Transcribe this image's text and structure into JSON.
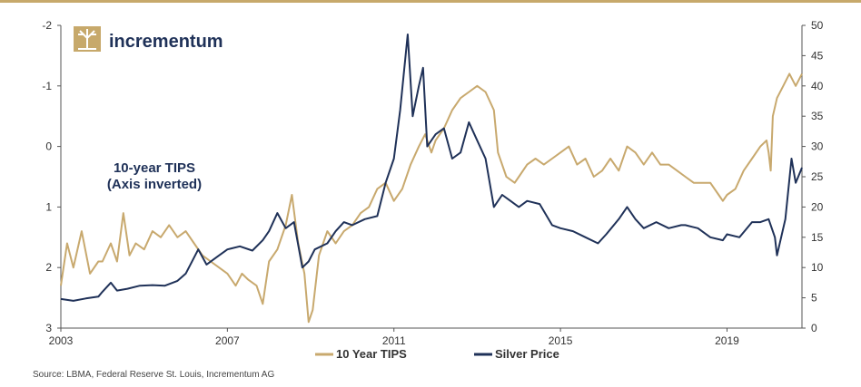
{
  "logo": {
    "text": "incrementum",
    "icon": "tree-icon"
  },
  "source": "Source: LBMA, Federal Reserve St. Louis, Incrementum AG",
  "annotation": {
    "line1": "10-year TIPS",
    "line2": "(Axis inverted)"
  },
  "colors": {
    "tips": "#c8a96e",
    "silver": "#1f3158",
    "accent": "#c7a96b"
  },
  "chart_data": {
    "type": "line",
    "x_ticks": [
      "2003",
      "2007",
      "2011",
      "2015",
      "2019"
    ],
    "x_range": [
      2003,
      2020.8
    ],
    "left_axis": {
      "series": "10 Year TIPS",
      "range": [
        -2,
        3
      ],
      "inverted": true,
      "ticks": [
        "-2",
        "-1",
        "0",
        "1",
        "2",
        "3"
      ]
    },
    "right_axis": {
      "series": "Silver Price",
      "range": [
        0,
        50
      ],
      "ticks": [
        "0",
        "5",
        "10",
        "15",
        "20",
        "25",
        "30",
        "35",
        "40",
        "45",
        "50"
      ]
    },
    "grid": false,
    "legend_position": "bottom",
    "series": [
      {
        "name": "10 Year TIPS",
        "axis": "left",
        "points": [
          [
            2003.0,
            2.3
          ],
          [
            2003.15,
            1.6
          ],
          [
            2003.3,
            2.0
          ],
          [
            2003.5,
            1.4
          ],
          [
            2003.7,
            2.1
          ],
          [
            2003.9,
            1.9
          ],
          [
            2004.0,
            1.9
          ],
          [
            2004.2,
            1.6
          ],
          [
            2004.35,
            1.9
          ],
          [
            2004.5,
            1.1
          ],
          [
            2004.65,
            1.8
          ],
          [
            2004.8,
            1.6
          ],
          [
            2005.0,
            1.7
          ],
          [
            2005.2,
            1.4
          ],
          [
            2005.4,
            1.5
          ],
          [
            2005.6,
            1.3
          ],
          [
            2005.8,
            1.5
          ],
          [
            2006.0,
            1.4
          ],
          [
            2006.2,
            1.6
          ],
          [
            2006.4,
            1.8
          ],
          [
            2006.6,
            1.9
          ],
          [
            2006.8,
            2.0
          ],
          [
            2007.0,
            2.1
          ],
          [
            2007.2,
            2.3
          ],
          [
            2007.35,
            2.1
          ],
          [
            2007.5,
            2.2
          ],
          [
            2007.7,
            2.3
          ],
          [
            2007.85,
            2.6
          ],
          [
            2008.0,
            1.9
          ],
          [
            2008.2,
            1.7
          ],
          [
            2008.4,
            1.3
          ],
          [
            2008.55,
            0.8
          ],
          [
            2008.7,
            1.6
          ],
          [
            2008.85,
            2.1
          ],
          [
            2008.95,
            2.9
          ],
          [
            2009.05,
            2.7
          ],
          [
            2009.2,
            1.8
          ],
          [
            2009.4,
            1.4
          ],
          [
            2009.6,
            1.6
          ],
          [
            2009.8,
            1.4
          ],
          [
            2010.0,
            1.3
          ],
          [
            2010.2,
            1.1
          ],
          [
            2010.4,
            1.0
          ],
          [
            2010.6,
            0.7
          ],
          [
            2010.8,
            0.6
          ],
          [
            2011.0,
            0.9
          ],
          [
            2011.2,
            0.7
          ],
          [
            2011.4,
            0.3
          ],
          [
            2011.6,
            0.0
          ],
          [
            2011.75,
            -0.2
          ],
          [
            2011.9,
            0.1
          ],
          [
            2012.0,
            -0.1
          ],
          [
            2012.2,
            -0.3
          ],
          [
            2012.4,
            -0.6
          ],
          [
            2012.6,
            -0.8
          ],
          [
            2012.8,
            -0.9
          ],
          [
            2013.0,
            -1.0
          ],
          [
            2013.2,
            -0.9
          ],
          [
            2013.4,
            -0.6
          ],
          [
            2013.5,
            0.1
          ],
          [
            2013.7,
            0.5
          ],
          [
            2013.9,
            0.6
          ],
          [
            2014.0,
            0.5
          ],
          [
            2014.2,
            0.3
          ],
          [
            2014.4,
            0.2
          ],
          [
            2014.6,
            0.3
          ],
          [
            2014.8,
            0.2
          ],
          [
            2015.0,
            0.1
          ],
          [
            2015.2,
            0.0
          ],
          [
            2015.4,
            0.3
          ],
          [
            2015.6,
            0.2
          ],
          [
            2015.8,
            0.5
          ],
          [
            2016.0,
            0.4
          ],
          [
            2016.2,
            0.2
          ],
          [
            2016.4,
            0.4
          ],
          [
            2016.6,
            0.0
          ],
          [
            2016.8,
            0.1
          ],
          [
            2017.0,
            0.3
          ],
          [
            2017.2,
            0.1
          ],
          [
            2017.4,
            0.3
          ],
          [
            2017.6,
            0.3
          ],
          [
            2017.8,
            0.4
          ],
          [
            2018.0,
            0.5
          ],
          [
            2018.2,
            0.6
          ],
          [
            2018.4,
            0.6
          ],
          [
            2018.6,
            0.6
          ],
          [
            2018.8,
            0.8
          ],
          [
            2018.9,
            0.9
          ],
          [
            2019.0,
            0.8
          ],
          [
            2019.2,
            0.7
          ],
          [
            2019.4,
            0.4
          ],
          [
            2019.6,
            0.2
          ],
          [
            2019.8,
            0.0
          ],
          [
            2019.95,
            -0.1
          ],
          [
            2020.0,
            0.1
          ],
          [
            2020.05,
            0.4
          ],
          [
            2020.1,
            -0.5
          ],
          [
            2020.2,
            -0.8
          ],
          [
            2020.35,
            -1.0
          ],
          [
            2020.5,
            -1.2
          ],
          [
            2020.65,
            -1.0
          ],
          [
            2020.8,
            -1.2
          ]
        ]
      },
      {
        "name": "Silver Price",
        "axis": "right",
        "points": [
          [
            2003.0,
            4.8
          ],
          [
            2003.3,
            4.5
          ],
          [
            2003.6,
            4.9
          ],
          [
            2003.9,
            5.2
          ],
          [
            2004.0,
            6.0
          ],
          [
            2004.2,
            7.5
          ],
          [
            2004.35,
            6.2
          ],
          [
            2004.6,
            6.5
          ],
          [
            2004.9,
            7.0
          ],
          [
            2005.2,
            7.1
          ],
          [
            2005.5,
            7.0
          ],
          [
            2005.8,
            7.8
          ],
          [
            2006.0,
            9.0
          ],
          [
            2006.3,
            13.0
          ],
          [
            2006.5,
            10.5
          ],
          [
            2006.8,
            12.0
          ],
          [
            2007.0,
            13.0
          ],
          [
            2007.3,
            13.5
          ],
          [
            2007.6,
            12.8
          ],
          [
            2007.85,
            14.5
          ],
          [
            2008.0,
            16.0
          ],
          [
            2008.2,
            19.0
          ],
          [
            2008.4,
            16.5
          ],
          [
            2008.6,
            17.5
          ],
          [
            2008.8,
            10.0
          ],
          [
            2008.95,
            11.0
          ],
          [
            2009.1,
            13.0
          ],
          [
            2009.4,
            14.0
          ],
          [
            2009.6,
            16.0
          ],
          [
            2009.8,
            17.5
          ],
          [
            2010.0,
            17.0
          ],
          [
            2010.3,
            18.0
          ],
          [
            2010.6,
            18.5
          ],
          [
            2010.8,
            24.0
          ],
          [
            2011.0,
            28.0
          ],
          [
            2011.15,
            36.0
          ],
          [
            2011.33,
            48.5
          ],
          [
            2011.45,
            35.0
          ],
          [
            2011.6,
            40.0
          ],
          [
            2011.7,
            43.0
          ],
          [
            2011.8,
            30.0
          ],
          [
            2012.0,
            32.0
          ],
          [
            2012.2,
            33.0
          ],
          [
            2012.4,
            28.0
          ],
          [
            2012.6,
            29.0
          ],
          [
            2012.8,
            34.0
          ],
          [
            2013.0,
            31.0
          ],
          [
            2013.2,
            28.0
          ],
          [
            2013.4,
            20.0
          ],
          [
            2013.6,
            22.0
          ],
          [
            2013.8,
            21.0
          ],
          [
            2014.0,
            20.0
          ],
          [
            2014.2,
            21.0
          ],
          [
            2014.5,
            20.5
          ],
          [
            2014.8,
            17.0
          ],
          [
            2015.0,
            16.5
          ],
          [
            2015.3,
            16.0
          ],
          [
            2015.6,
            15.0
          ],
          [
            2015.9,
            14.0
          ],
          [
            2016.1,
            15.5
          ],
          [
            2016.4,
            18.0
          ],
          [
            2016.6,
            20.0
          ],
          [
            2016.8,
            18.0
          ],
          [
            2017.0,
            16.5
          ],
          [
            2017.3,
            17.5
          ],
          [
            2017.6,
            16.5
          ],
          [
            2017.9,
            17.0
          ],
          [
            2018.0,
            17.0
          ],
          [
            2018.3,
            16.5
          ],
          [
            2018.6,
            15.0
          ],
          [
            2018.9,
            14.5
          ],
          [
            2019.0,
            15.5
          ],
          [
            2019.3,
            15.0
          ],
          [
            2019.6,
            17.5
          ],
          [
            2019.8,
            17.5
          ],
          [
            2020.0,
            18.0
          ],
          [
            2020.15,
            15.0
          ],
          [
            2020.2,
            12.0
          ],
          [
            2020.4,
            18.0
          ],
          [
            2020.55,
            28.0
          ],
          [
            2020.65,
            24.0
          ],
          [
            2020.8,
            26.5
          ]
        ]
      }
    ]
  }
}
